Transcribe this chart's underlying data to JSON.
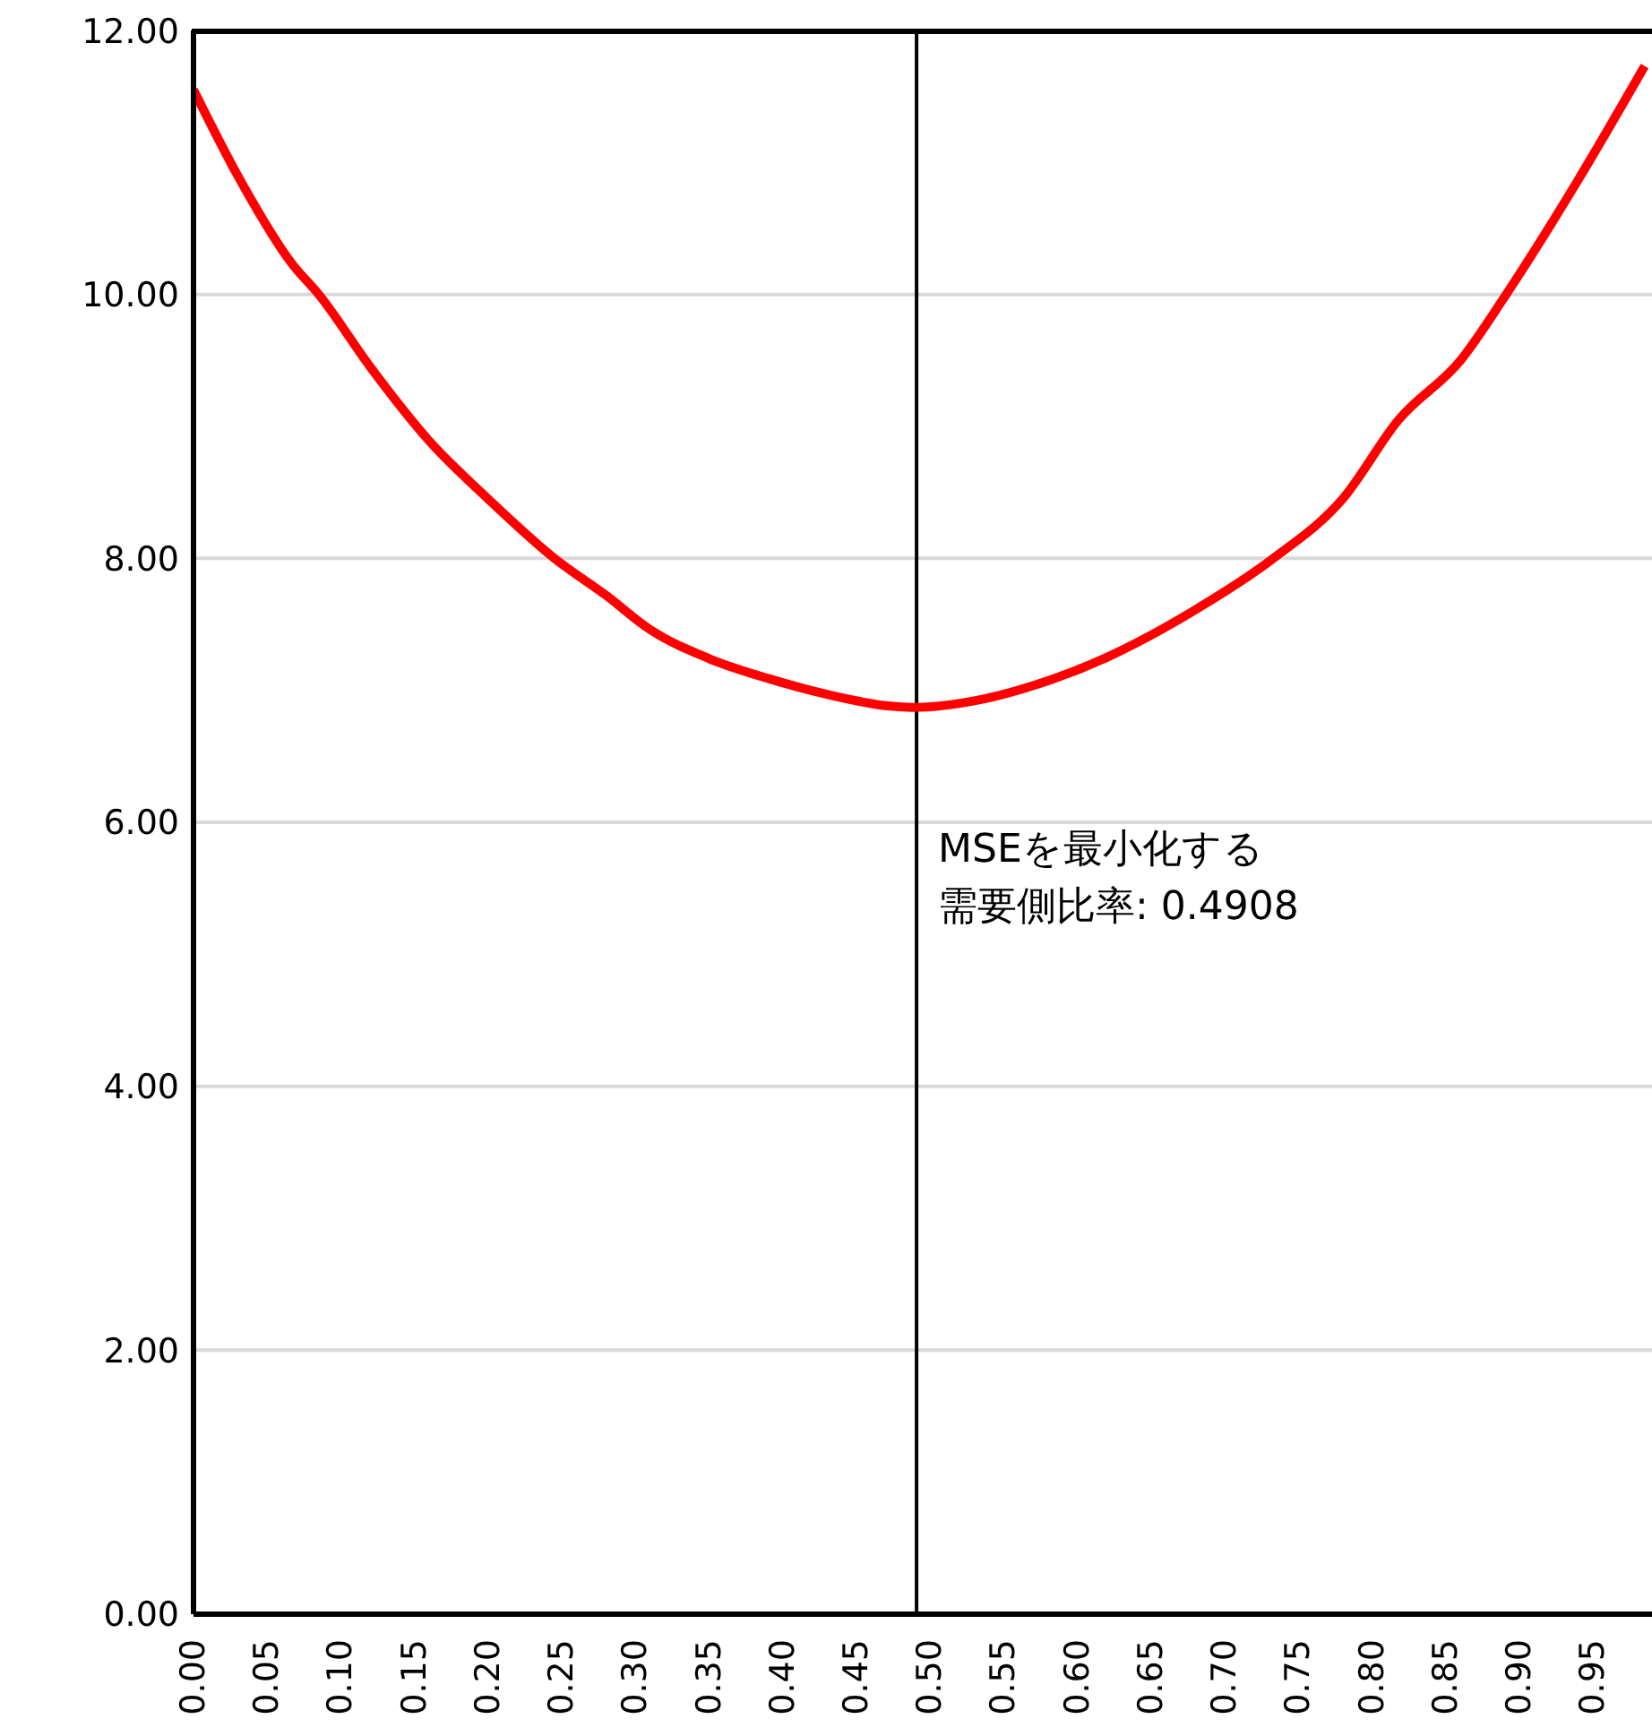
{
  "chart_data": {
    "type": "line",
    "x": [
      0,
      0.03,
      0.067,
      0.085,
      0.12,
      0.16,
      0.2,
      0.245,
      0.28,
      0.31,
      0.35,
      0.39,
      0.43,
      0.473,
      0.489,
      0.53,
      0.574,
      0.62,
      0.677,
      0.733,
      0.78,
      0.818,
      0.86,
      0.891,
      0.94,
      0.985
    ],
    "series": [
      {
        "color": "#ff0000",
        "values": [
          11.55,
          10.9,
          10.23,
          10.0,
          9.45,
          8.89,
          8.45,
          8.0,
          7.72,
          7.46,
          7.24,
          7.09,
          6.97,
          6.88,
          6.87,
          6.92,
          7.05,
          7.25,
          7.59,
          8.0,
          8.45,
          9.05,
          9.5,
          10.0,
          10.87,
          11.73
        ]
      }
    ],
    "xlim": [
      0,
      0.99
    ],
    "xticks": [
      {
        "value": 0,
        "label": "0.00"
      },
      {
        "value": 0.05,
        "label": "0.05"
      },
      {
        "value": 0.1,
        "label": "0.10"
      },
      {
        "value": 0.15,
        "label": "0.15"
      },
      {
        "value": 0.2,
        "label": "0.20"
      },
      {
        "value": 0.25,
        "label": "0.25"
      },
      {
        "value": 0.3,
        "label": "0.30"
      },
      {
        "value": 0.35,
        "label": "0.35"
      },
      {
        "value": 0.4,
        "label": "0.40"
      },
      {
        "value": 0.45,
        "label": "0.45"
      },
      {
        "value": 0.5,
        "label": "0.50"
      },
      {
        "value": 0.55,
        "label": "0.55"
      },
      {
        "value": 0.6,
        "label": "0.60"
      },
      {
        "value": 0.65,
        "label": "0.65"
      },
      {
        "value": 0.7,
        "label": "0.70"
      },
      {
        "value": 0.75,
        "label": "0.75"
      },
      {
        "value": 0.8,
        "label": "0.80"
      },
      {
        "value": 0.85,
        "label": "0.85"
      },
      {
        "value": 0.9,
        "label": "0.90"
      },
      {
        "value": 0.95,
        "label": "0.95"
      }
    ],
    "ylim": [
      0,
      12
    ],
    "yticks": [
      {
        "value": 0,
        "label": "0.00"
      },
      {
        "value": 2,
        "label": "2.00"
      },
      {
        "value": 4,
        "label": "4.00"
      },
      {
        "value": 6,
        "label": "6.00"
      },
      {
        "value": 8,
        "label": "8.00"
      },
      {
        "value": 10,
        "label": "10.00"
      },
      {
        "value": 12,
        "label": "12.00"
      }
    ],
    "grid": "y",
    "marker": "none",
    "line_style": "solid",
    "ref_lines": [
      {
        "axis": "x",
        "value": 0.4908,
        "label": "MSEを最小化する需要側比率: 0.4908",
        "color": "#000000"
      }
    ]
  }
}
